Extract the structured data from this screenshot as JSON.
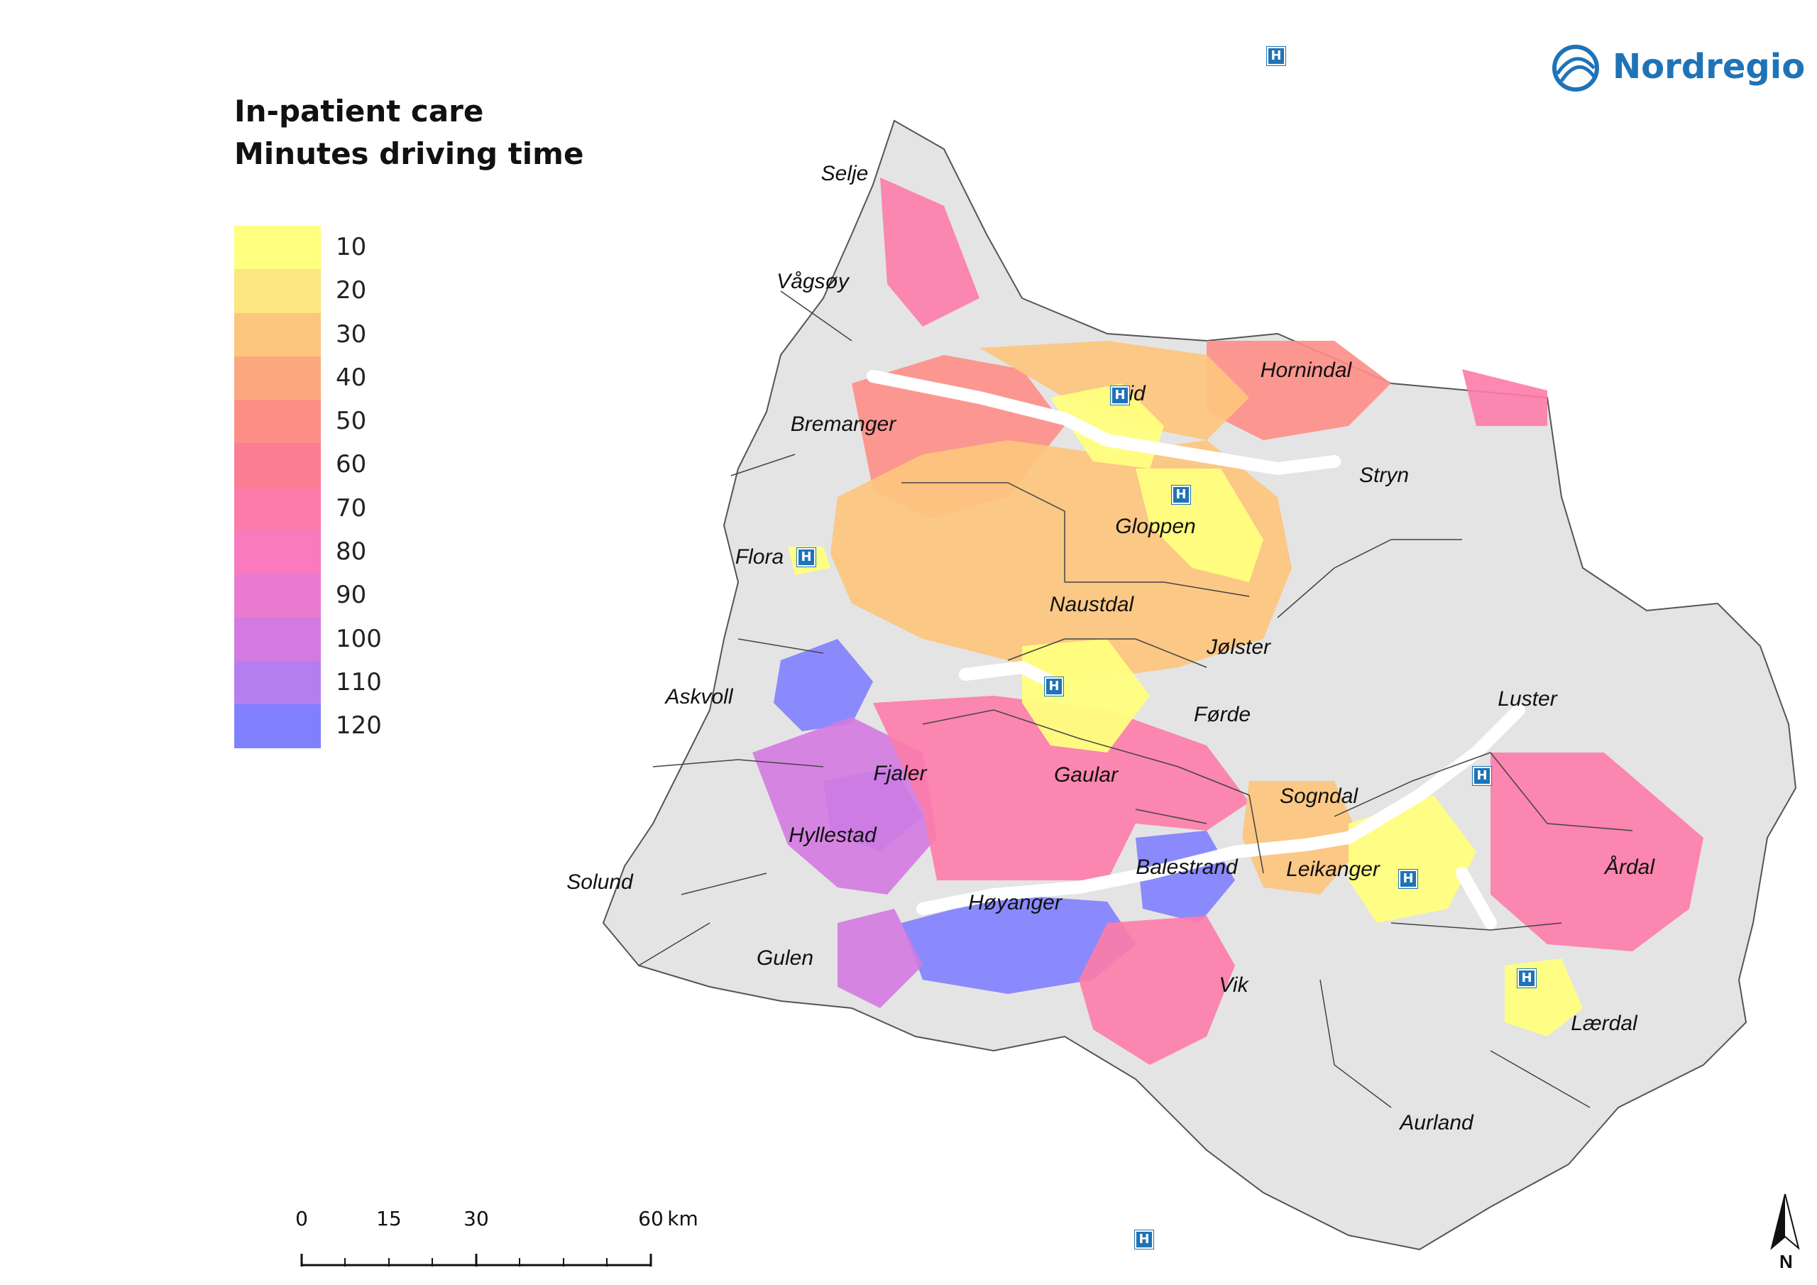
{
  "legend": {
    "title_line1": "In-patient care",
    "title_line2": "Minutes driving time",
    "items": [
      {
        "label": "10",
        "color": "#ffff80"
      },
      {
        "label": "20",
        "color": "#fde57f"
      },
      {
        "label": "30",
        "color": "#fdc57e"
      },
      {
        "label": "40",
        "color": "#fda77e"
      },
      {
        "label": "50",
        "color": "#fd8e86"
      },
      {
        "label": "60",
        "color": "#fd7d95"
      },
      {
        "label": "70",
        "color": "#fd7ba8"
      },
      {
        "label": "80",
        "color": "#f97abe"
      },
      {
        "label": "90",
        "color": "#eb7ad1"
      },
      {
        "label": "100",
        "color": "#d37ae0"
      },
      {
        "label": "110",
        "color": "#b47ef0"
      },
      {
        "label": "120",
        "color": "#8080ff"
      }
    ]
  },
  "logo": {
    "text": "Nordregio"
  },
  "places": [
    {
      "id": "selje",
      "label": "Selje"
    },
    {
      "id": "vagsoy",
      "label": "Vågsøy"
    },
    {
      "id": "eid",
      "label": "Eid"
    },
    {
      "id": "hornindal",
      "label": "Hornindal"
    },
    {
      "id": "bremanger",
      "label": "Bremanger"
    },
    {
      "id": "stryn",
      "label": "Stryn"
    },
    {
      "id": "gloppen",
      "label": "Gloppen"
    },
    {
      "id": "flora",
      "label": "Flora"
    },
    {
      "id": "naustdal",
      "label": "Naustdal"
    },
    {
      "id": "jolster",
      "label": "Jølster"
    },
    {
      "id": "askvoll",
      "label": "Askvoll"
    },
    {
      "id": "forde",
      "label": "Førde"
    },
    {
      "id": "luster",
      "label": "Luster"
    },
    {
      "id": "fjaler",
      "label": "Fjaler"
    },
    {
      "id": "gaular",
      "label": "Gaular"
    },
    {
      "id": "sogndal",
      "label": "Sogndal"
    },
    {
      "id": "hyllestad",
      "label": "Hyllestad"
    },
    {
      "id": "balestrand",
      "label": "Balestrand"
    },
    {
      "id": "leikanger",
      "label": "Leikanger"
    },
    {
      "id": "ardal",
      "label": "Årdal"
    },
    {
      "id": "solund",
      "label": "Solund"
    },
    {
      "id": "hoyanger",
      "label": "Høyanger"
    },
    {
      "id": "gulen",
      "label": "Gulen"
    },
    {
      "id": "vik",
      "label": "Vik"
    },
    {
      "id": "laerdal",
      "label": "Lærdal"
    },
    {
      "id": "aurland",
      "label": "Aurland"
    }
  ],
  "hospital_symbol": "H",
  "scale": {
    "ticks": [
      "0",
      "15",
      "30",
      "60"
    ],
    "unit": "km"
  },
  "north_arrow": {
    "label": "N"
  }
}
